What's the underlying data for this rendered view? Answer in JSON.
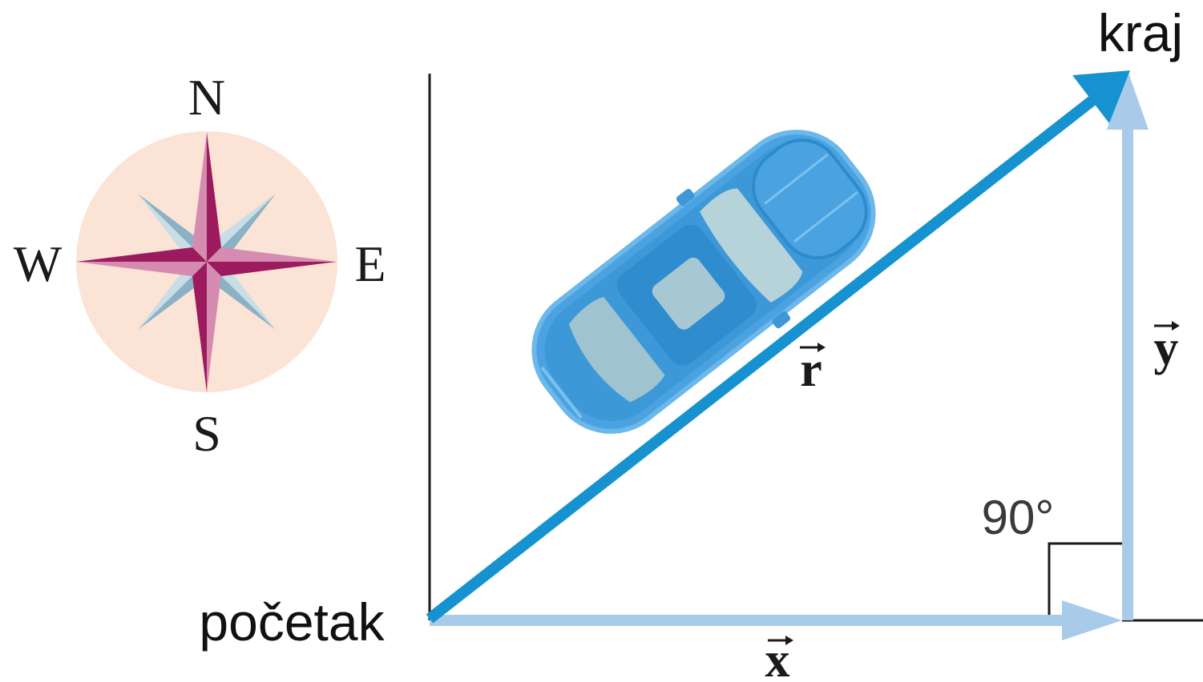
{
  "compass": {
    "north": "N",
    "south": "S",
    "east": "E",
    "west": "W"
  },
  "labels": {
    "start": "početak",
    "end": "kraj",
    "angle": "90°"
  },
  "vectors": {
    "resultant": "r",
    "x_component": "x",
    "y_component": "y"
  },
  "colors": {
    "resultant_vector": "#1592cf",
    "component_vector": "#a9cbea",
    "compass_disc": "#fbe3d5",
    "compass_star_main": "#9b1b5e",
    "compass_star_diagonal": "#8ab2c4",
    "car_body": "#4aa3e0"
  }
}
